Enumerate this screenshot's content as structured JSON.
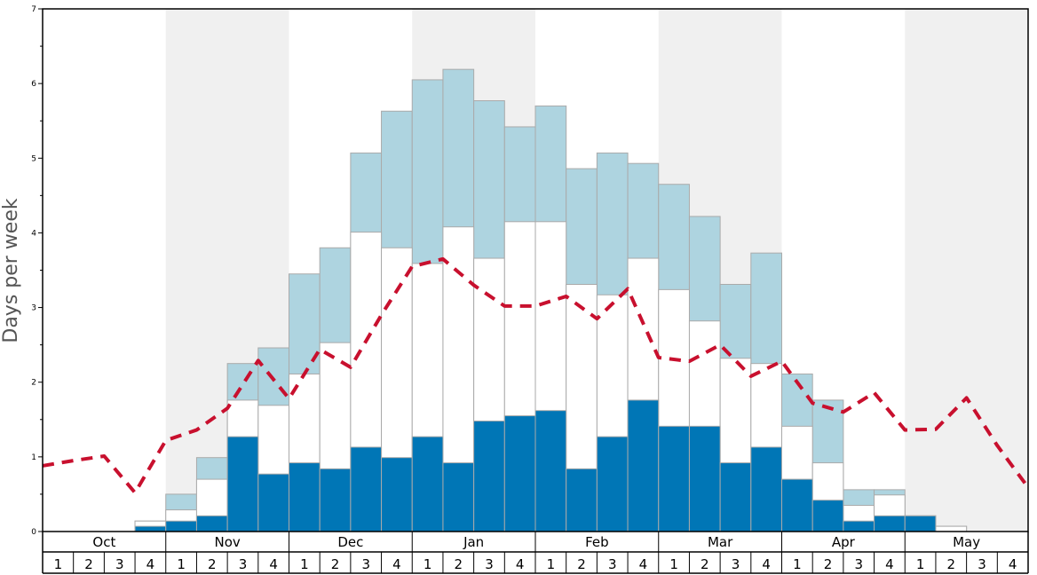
{
  "chart_data": {
    "type": "bar",
    "ylabel": "Days per week",
    "ylim": [
      0,
      7
    ],
    "yticks": [
      "0",
      "1",
      "2",
      "3",
      "4",
      "5",
      "6",
      "7"
    ],
    "months": [
      "Oct",
      "Nov",
      "Dec",
      "Jan",
      "Feb",
      "Mar",
      "Apr",
      "May"
    ],
    "weeks_per_month": [
      "1",
      "2",
      "3",
      "4"
    ],
    "series": [
      {
        "values": [
          0,
          0,
          0,
          0.07,
          0.14,
          0.21,
          1.27,
          0.77,
          0.92,
          0.84,
          1.13,
          0.99,
          1.27,
          0.92,
          1.48,
          1.55,
          1.62,
          0.84,
          1.27,
          1.76,
          1.41,
          1.41,
          0.92,
          1.13,
          0.7,
          0.42,
          0.14,
          0.21,
          0.21,
          0,
          0,
          0
        ]
      },
      {
        "values": [
          0,
          0,
          0,
          0.14,
          0.29,
          0.7,
          1.76,
          1.69,
          2.11,
          2.53,
          4.01,
          3.8,
          3.59,
          4.08,
          3.66,
          4.15,
          4.15,
          3.31,
          3.17,
          3.66,
          3.24,
          2.82,
          2.32,
          2.25,
          1.41,
          0.92,
          0.35,
          0.49,
          0.21,
          0.07,
          0,
          0
        ]
      },
      {
        "values": [
          0,
          0,
          0,
          0.14,
          0.5,
          0.99,
          2.25,
          2.46,
          3.45,
          3.8,
          5.07,
          5.63,
          6.05,
          6.19,
          5.77,
          5.42,
          5.7,
          4.86,
          5.07,
          4.93,
          4.65,
          4.22,
          3.31,
          3.73,
          2.11,
          1.76,
          0.56,
          0.56,
          0.21,
          0.07,
          0,
          0
        ]
      },
      {
        "values": [
          0.88,
          0.95,
          1.01,
          0.52,
          1.22,
          1.36,
          1.65,
          2.29,
          1.78,
          2.44,
          2.2,
          2.9,
          3.55,
          3.65,
          3.3,
          3.02,
          3.02,
          3.15,
          2.85,
          3.25,
          2.33,
          2.28,
          2.5,
          2.08,
          2.28,
          1.72,
          1.6,
          1.86,
          1.36,
          1.37,
          1.79,
          1.15,
          0.59
        ]
      }
    ],
    "colors": {
      "bar_dark": "#0076b6",
      "bar_white": "#ffffff",
      "bar_light": "#aed4e0",
      "bar_stroke": "#aaaaaa",
      "line": "#c8102e",
      "shade": "#f0f0f0"
    },
    "grid": false,
    "legend": "none"
  }
}
